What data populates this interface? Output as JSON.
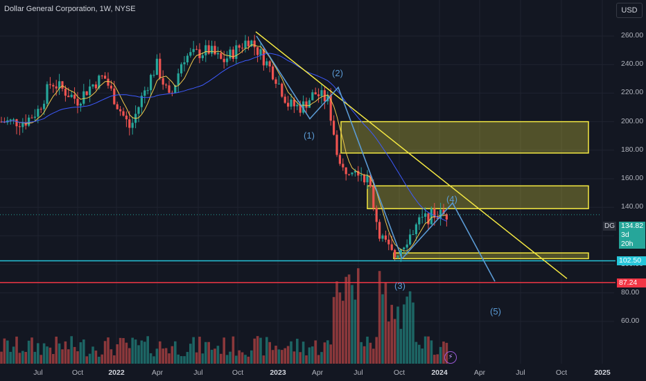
{
  "header": {
    "title": "Dollar General Corporation, 1W, NYSE",
    "currency_button": "USD",
    "symbol": "DG"
  },
  "price_tag": {
    "value": "134.82",
    "countdown": "3d 20h",
    "color": "#26a69a"
  },
  "support_line": {
    "value": 102.5,
    "label": "102.50",
    "color": "#26c6da"
  },
  "target_line": {
    "value": 87.24,
    "label": "87.24",
    "color": "#f23645"
  },
  "wave_labels": [
    "(1)",
    "(2)",
    "(3)",
    "(4)",
    "(5)"
  ],
  "chart_data": {
    "type": "candlestick",
    "interval": "1W",
    "y_axis": {
      "min": 50,
      "max": 270,
      "ticks": [
        260,
        240,
        220,
        200,
        180,
        160,
        140,
        120,
        100,
        80,
        60
      ]
    },
    "x_axis_labels": [
      {
        "label": "Jul",
        "bold": false
      },
      {
        "label": "Oct",
        "bold": false
      },
      {
        "label": "2022",
        "bold": true
      },
      {
        "label": "Apr",
        "bold": false
      },
      {
        "label": "Jul",
        "bold": false
      },
      {
        "label": "Oct",
        "bold": false
      },
      {
        "label": "2023",
        "bold": true
      },
      {
        "label": "Apr",
        "bold": false
      },
      {
        "label": "Jul",
        "bold": false
      },
      {
        "label": "Oct",
        "bold": false
      },
      {
        "label": "2024",
        "bold": true
      },
      {
        "label": "Apr",
        "bold": false
      },
      {
        "label": "Jul",
        "bold": false
      },
      {
        "label": "Oct",
        "bold": false
      },
      {
        "label": "2025",
        "bold": true
      }
    ],
    "price_path": [
      [
        "2021-06",
        200
      ],
      [
        "2021-07",
        208
      ],
      [
        "2021-08",
        228
      ],
      [
        "2021-10",
        215
      ],
      [
        "2021-11",
        225
      ],
      [
        "2021-12",
        232
      ],
      [
        "2022-01",
        212
      ],
      [
        "2022-02",
        195
      ],
      [
        "2022-03",
        220
      ],
      [
        "2022-04",
        240
      ],
      [
        "2022-05",
        215
      ],
      [
        "2022-06",
        245
      ],
      [
        "2022-08",
        250
      ],
      [
        "2022-09",
        242
      ],
      [
        "2022-11",
        258
      ],
      [
        "2022-12",
        246
      ],
      [
        "2023-01",
        232
      ],
      [
        "2023-02",
        212
      ],
      [
        "2023-03",
        210
      ],
      [
        "2023-04",
        220
      ],
      [
        "2023-05",
        215
      ],
      [
        "2023-06",
        165
      ],
      [
        "2023-07",
        170
      ],
      [
        "2023-08",
        160
      ],
      [
        "2023-09",
        120
      ],
      [
        "2023-10",
        105
      ],
      [
        "2023-11",
        118
      ],
      [
        "2023-12",
        130
      ],
      [
        "2024-01",
        134.82
      ]
    ],
    "zones": [
      {
        "from": "2023-06",
        "to": "2024-10",
        "top": 200,
        "bottom": 178,
        "color": "#f5e942"
      },
      {
        "from": "2023-08",
        "to": "2024-10",
        "top": 155,
        "bottom": 139,
        "color": "#f5e942"
      },
      {
        "from": "2023-10",
        "to": "2024-10",
        "top": 108,
        "bottom": 104,
        "color": "#f5e942"
      }
    ],
    "trendline": {
      "from": [
        "2022-11",
        263
      ],
      "to": [
        "2024-10",
        90
      ],
      "color": "#f5e942"
    },
    "elliott_wave": [
      [
        "2022-11",
        260
      ],
      [
        "2023-03",
        202
      ],
      [
        "2023-05",
        224
      ],
      [
        "2023-10",
        104
      ],
      [
        "2024-02",
        143
      ],
      [
        "2024-05",
        88
      ]
    ]
  }
}
